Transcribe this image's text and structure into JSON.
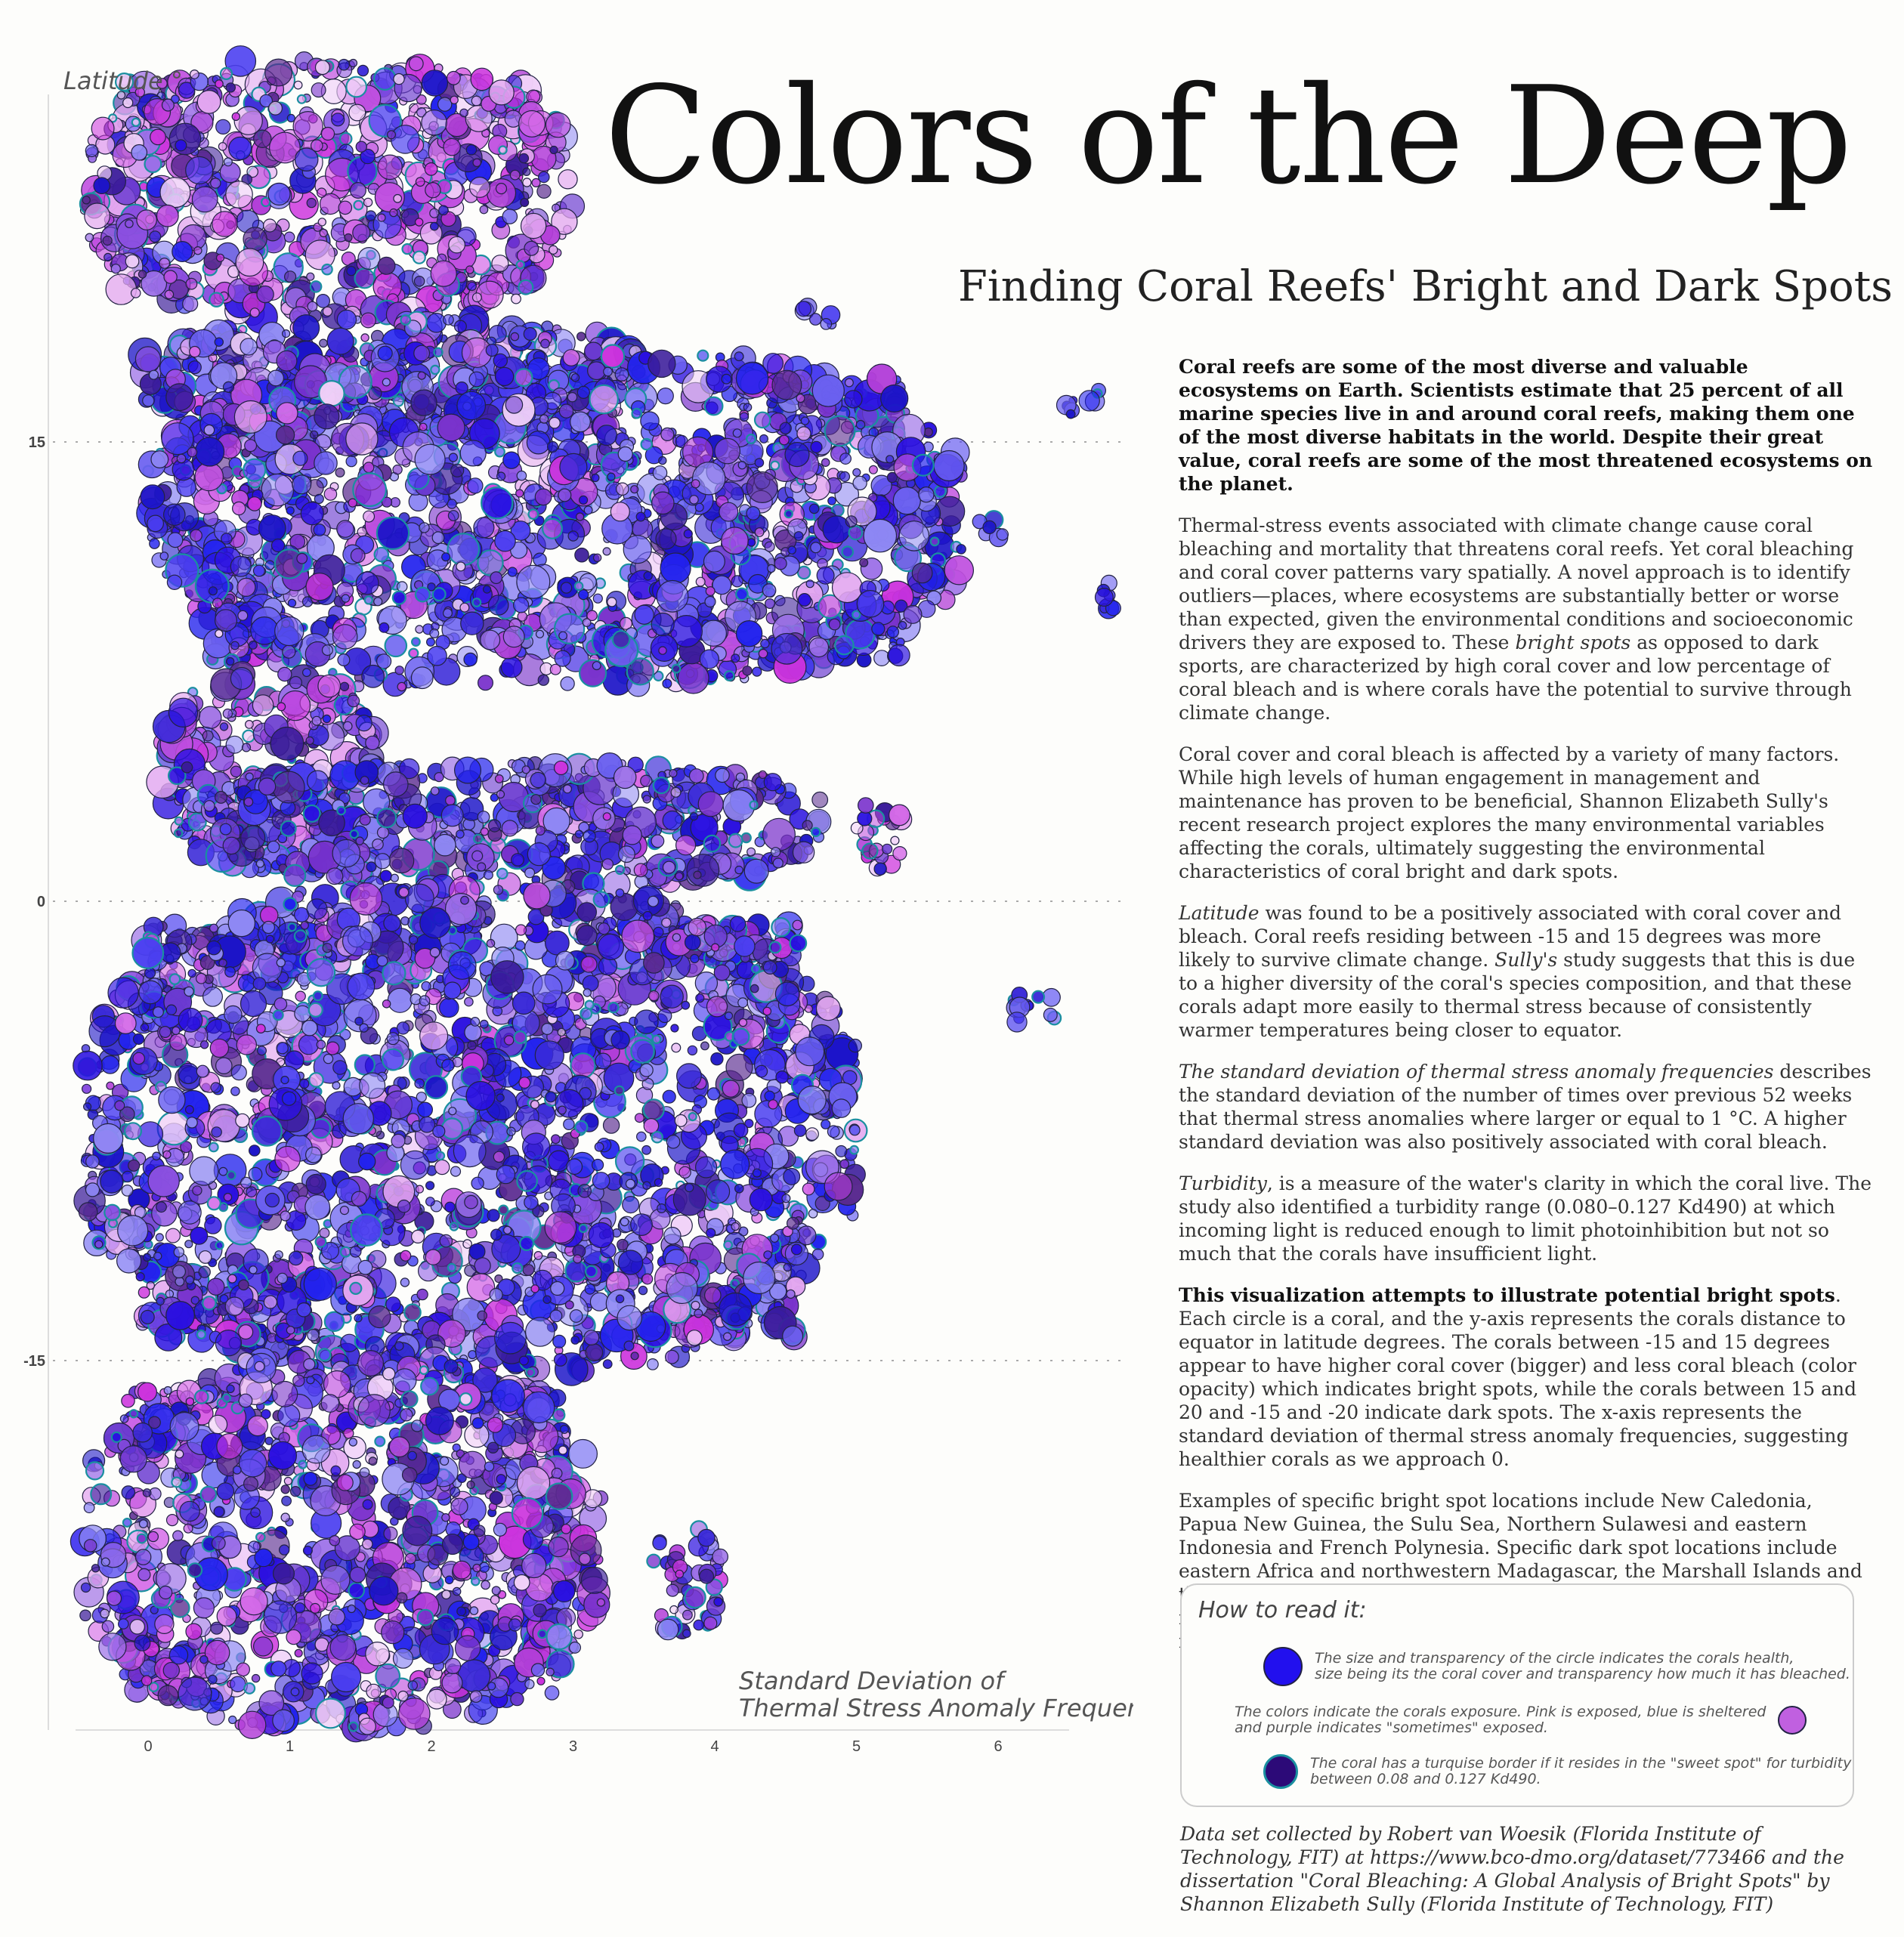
{
  "title": "Colors of the Deep",
  "subtitle": "Finding Coral Reefs' Bright and Dark Spots",
  "text": {
    "p1": "Coral reefs are some of the most diverse and valuable ecosystems on Earth. Scientists estimate that 25 percent of all marine species live in and around coral reefs, making them one of the most diverse habitats in the world. Despite their great value, coral reefs are some of the most threatened ecosystems on the planet.",
    "p2a": "Thermal-stress events associated with climate change cause coral bleaching and mortality that threatens coral reefs. Yet coral bleaching and coral cover patterns vary spatially. A novel approach is to identify outliers—places, where ecosystems are substantially better or worse than expected, given the environmental conditions and socioeconomic drivers they are exposed to. These ",
    "p2b": "bright spots",
    "p2c": " as opposed to dark sports, are characterized by high coral cover and low percentage of coral bleach and is where corals have the potential to survive through climate change.",
    "p3": "Coral cover and coral bleach is affected by a variety of many factors. While high levels of human engagement in management and maintenance has proven to be beneficial, Shannon Elizabeth Sully's recent research project explores the many environmental variables affecting the corals, ultimately suggesting the environmental characteristics of coral bright and dark spots.",
    "p4a": "Latitude",
    "p4b": " was found to be a positively associated with coral cover and bleach. Coral reefs residing between -15 and 15 degrees was more likely to survive climate change. ",
    "p4c": "Sully's",
    "p4d": " study suggests that this is due to a higher diversity of the coral's species composition, and that these corals adapt more easily to thermal stress because of consistently warmer temperatures being closer to equator.",
    "p5a": "The standard deviation of thermal stress anomaly frequencies",
    "p5b": " describes the standard deviation of the number of times over previous 52 weeks that thermal stress anomalies where larger or equal to 1 °C. A higher standard deviation was also positively associated with coral bleach.",
    "p6a": "Turbidity",
    "p6b": ", is a measure of the water's clarity in which the coral live. The study also identified a turbidity range (0.080–0.127 Kd490) at which incoming light is reduced enough to limit photoinhibition but not so much that the corals have insufficient light.",
    "p7a": "This visualization attempts to illustrate potential bright spots",
    "p7b": ". Each circle is a coral, and the y-axis represents the corals distance to equator in latitude degrees. The corals between -15 and 15 degrees appear to have higher coral cover (bigger) and less coral bleach (color opacity) which indicates bright spots, while the corals between 15 and 20 and -15 and -20 indicate dark spots. The x-axis represents the standard deviation of thermal stress anomaly frequencies, suggesting healthier corals as we approach 0.",
    "p8": "Examples of specific bright spot locations include New Caledonia, Papua New Guinea, the Sulu Sea, Northern Sulawesi and eastern Indonesia and French Polynesia. Specific dark spot locations include eastern Africa and northwestern Madagascar, the Marshall Islands and the northern Caribbean. Given their increased likelihood of persisting into the future, these climate change refugia and bright spots may be important targets for conservation funding and efforts in the future."
  },
  "legend": {
    "title": "How to read it:",
    "size_text_1": "The size and transparency of the circle indicates the corals health,",
    "size_text_2": "size being its the coral cover and transparency how much it has bleached.",
    "color_text_1": "The colors indicate the corals exposure. Pink is exposed, blue is sheltered",
    "color_text_2": "and purple indicates \"sometimes\" exposed.",
    "border_text_1": "The coral has a turquise border if it resides in the \"sweet spot\" for turbidity",
    "border_text_2": "between 0.08 and 0.127 Kd490."
  },
  "source": "Data set collected by Robert van Woesik (Florida Institute of Technology, FIT) at https://www.bco-dmo.org/dataset/773466 and the dissertation \"Coral Bleaching: A Global Analysis of Bright Spots\" by Shannon Elizabeth Sully (Florida Institute of Technology, FIT)",
  "colors": {
    "exposed": "#cc33dd",
    "sometimes": "#7733cc",
    "sheltered": "#2222ee",
    "turbidity_border": "#1a8f9f",
    "default_border": "#222244",
    "background": "#fdfdfb"
  },
  "chart_data": {
    "type": "scatter",
    "subtype": "beeswarm bubble",
    "ylabel": "Latitude °",
    "xlabel_line1": "Standard Deviation of",
    "xlabel_line2": "Thermal Stress Anomaly Frequencies",
    "x_ticks": [
      "0",
      "1",
      "2",
      "3",
      "4",
      "5",
      "6"
    ],
    "y_ticks": [
      "15",
      "0",
      "-15"
    ],
    "xlim": [
      -0.5,
      6.5
    ],
    "ylim": [
      -27,
      28.5
    ],
    "grid": "horizontal dotted at y ticks",
    "encoding": {
      "y": "latitude (degrees)",
      "x": "standard deviation of thermal stress anomaly frequencies",
      "size": "coral cover",
      "opacity": "coral bleach (more transparent = more bleached)",
      "color": "exposure: exposed (pink), sometimes (purple), sheltered (blue)",
      "border": "turquoise if turbidity between 0.08 and 0.127 Kd490"
    },
    "clusters": [
      {
        "y_top": 27.5,
        "y_bottom": 19.0,
        "x_left": -0.45,
        "x_right": 3.0,
        "exposed_share": 0.55,
        "sometimes_share": 0.25
      },
      {
        "y_top": 19.0,
        "y_bottom": 15.2,
        "x_left": -0.05,
        "x_right": 3.5,
        "exposed_share": 0.25,
        "sometimes_share": 0.2
      },
      {
        "y_top": 18.0,
        "y_bottom": 7.0,
        "x_left": 0.0,
        "x_right": 5.75,
        "exposed_share": 0.15,
        "sometimes_share": 0.25
      },
      {
        "y_top": 7.5,
        "y_bottom": 1.5,
        "x_left": 0.1,
        "x_right": 1.6,
        "exposed_share": 0.45,
        "sometimes_share": 0.3
      },
      {
        "y_top": 4.5,
        "y_bottom": 0.5,
        "x_left": 0.3,
        "x_right": 4.8,
        "exposed_share": 0.05,
        "sometimes_share": 0.35
      },
      {
        "y_top": 0.5,
        "y_bottom": -15.5,
        "x_left": -0.45,
        "x_right": 5.0,
        "exposed_share": 0.15,
        "sometimes_share": 0.25
      },
      {
        "y_top": -15.0,
        "y_bottom": -27.0,
        "x_left": -0.45,
        "x_right": 3.2,
        "exposed_share": 0.3,
        "sometimes_share": 0.3
      },
      {
        "y_top": -20.5,
        "y_bottom": -24.0,
        "x_left": 3.55,
        "x_right": 4.05,
        "exposed_share": 0.3,
        "sometimes_share": 0.3
      },
      {
        "y_top": 19.5,
        "y_bottom": 18.5,
        "x_left": 4.6,
        "x_right": 4.85,
        "exposed_share": 0.0,
        "sometimes_share": 0.2
      },
      {
        "y_top": 16.8,
        "y_bottom": 15.8,
        "x_left": 6.45,
        "x_right": 6.75,
        "exposed_share": 0.0,
        "sometimes_share": 0.0
      },
      {
        "y_top": 12.6,
        "y_bottom": 11.8,
        "x_left": 5.85,
        "x_right": 6.05,
        "exposed_share": 0.0,
        "sometimes_share": 0.0
      },
      {
        "y_top": 10.6,
        "y_bottom": 9.4,
        "x_left": 6.65,
        "x_right": 6.85,
        "exposed_share": 0.0,
        "sometimes_share": 0.0
      },
      {
        "y_top": 3.5,
        "y_bottom": 1.0,
        "x_left": 5.0,
        "x_right": 5.35,
        "exposed_share": 0.6,
        "sometimes_share": 0.2
      },
      {
        "y_top": -2.9,
        "y_bottom": -4.3,
        "x_left": 6.1,
        "x_right": 6.4,
        "exposed_share": 0.0,
        "sometimes_share": 0.0
      }
    ]
  }
}
